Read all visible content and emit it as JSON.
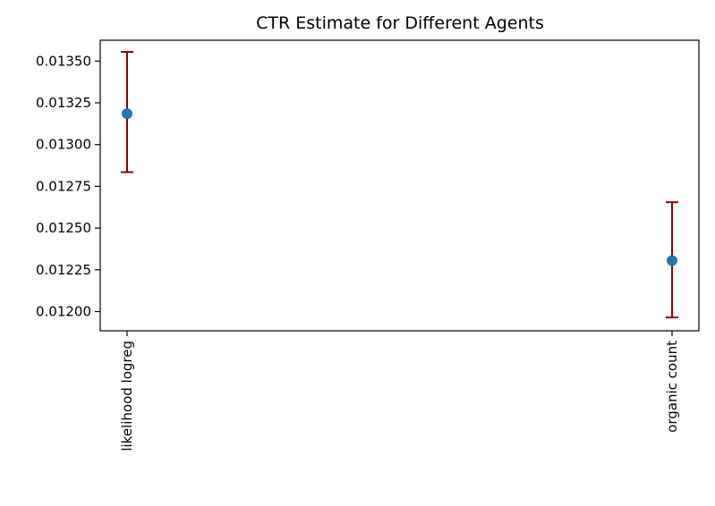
{
  "chart_data": {
    "type": "scatter",
    "title": "CTR Estimate for Different Agents",
    "xlabel": "",
    "ylabel": "",
    "categories": [
      "likelihood logreg",
      "organic count"
    ],
    "values": [
      0.013185,
      0.012305
    ],
    "error_low": [
      0.012835,
      0.011965
    ],
    "error_high": [
      0.013555,
      0.012655
    ],
    "ylim": [
      0.011885,
      0.013625
    ],
    "yticks": [
      "0.01200",
      "0.01225",
      "0.01250",
      "0.01275",
      "0.01300",
      "0.01325",
      "0.01350"
    ],
    "ytick_values": [
      0.012,
      0.01225,
      0.0125,
      0.01275,
      0.013,
      0.01325,
      0.0135
    ],
    "grid": false,
    "colors": {
      "marker": "#1f77b4",
      "errorbar": "#8b0000",
      "axis": "#000000"
    }
  }
}
